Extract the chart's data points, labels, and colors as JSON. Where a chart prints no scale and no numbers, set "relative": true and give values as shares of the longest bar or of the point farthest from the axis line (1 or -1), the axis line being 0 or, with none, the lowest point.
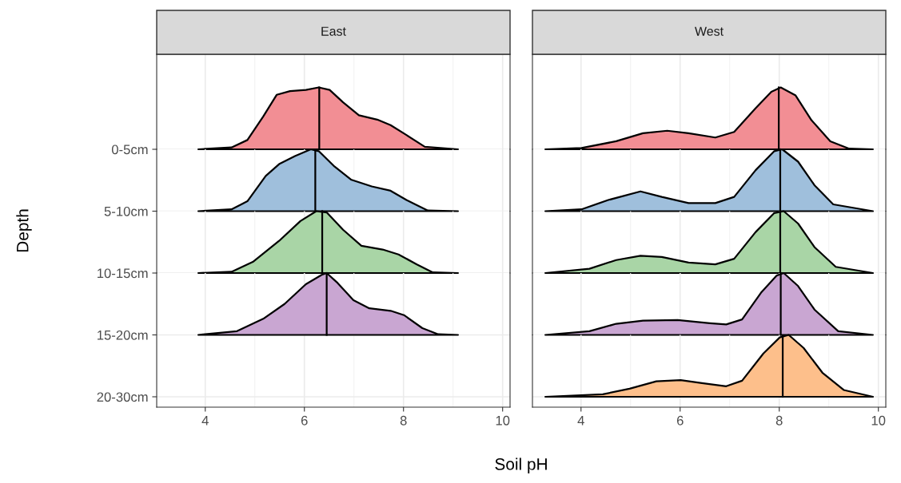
{
  "chart_data": [
    {
      "type": "area",
      "title": "East",
      "ylabel": "Depth",
      "relative": true,
      "grid": true,
      "tick_labels": "y",
      "y_categories": [
        "0-5cm"
      ],
      "xlim": [
        3.02,
        10.15
      ],
      "xticks": [
        4,
        6,
        8,
        10
      ],
      "series": [
        {
          "color": "#f28e94",
          "x": [
            3.86,
            4.53,
            4.85,
            5.17,
            5.44,
            5.71,
            6.03,
            6.29,
            6.51,
            6.78,
            7.1,
            7.47,
            7.74,
            8.06,
            8.43,
            9.1
          ],
          "values": [
            0,
            0.03,
            0.15,
            0.53,
            0.88,
            0.94,
            0.96,
            1,
            0.96,
            0.76,
            0.55,
            0.48,
            0.39,
            0.23,
            0.04,
            0
          ]
        },
        {
          "type": "line",
          "color": "#000000",
          "x": [
            6.3,
            6.3
          ],
          "values": [
            0,
            1
          ]
        }
      ]
    },
    {
      "type": "area",
      "relative": true,
      "grid": true,
      "tick_labels": "y",
      "y_categories": [
        "5-10cm"
      ],
      "xlim": [
        3.02,
        10.15
      ],
      "xticks": [
        4,
        6,
        8,
        10
      ],
      "series": [
        {
          "color": "#9fbfdc",
          "x": [
            3.86,
            4.53,
            4.85,
            5.22,
            5.49,
            5.81,
            6.13,
            6.29,
            6.61,
            6.94,
            7.36,
            7.74,
            8.06,
            8.49,
            9.1
          ],
          "values": [
            0,
            0.03,
            0.16,
            0.57,
            0.76,
            0.89,
            1,
            0.97,
            0.72,
            0.51,
            0.4,
            0.33,
            0.18,
            0.01,
            0
          ]
        },
        {
          "type": "line",
          "color": "#000000",
          "x": [
            6.22,
            6.22
          ],
          "values": [
            0,
            0.99
          ]
        }
      ]
    },
    {
      "type": "area",
      "relative": true,
      "grid": true,
      "tick_labels": "y",
      "y_categories": [
        "10-15cm"
      ],
      "xlim": [
        3.02,
        10.15
      ],
      "xticks": [
        4,
        6,
        8,
        10
      ],
      "series": [
        {
          "color": "#a9d5a6",
          "x": [
            3.86,
            4.53,
            4.96,
            5.49,
            5.92,
            6.24,
            6.45,
            6.78,
            7.15,
            7.58,
            7.9,
            8.27,
            8.59,
            9.1
          ],
          "values": [
            0,
            0.02,
            0.18,
            0.52,
            0.84,
            1,
            0.98,
            0.7,
            0.44,
            0.38,
            0.3,
            0.14,
            0.01,
            0
          ]
        },
        {
          "type": "line",
          "color": "#000000",
          "x": [
            6.36,
            6.36
          ],
          "values": [
            0,
            1
          ]
        }
      ]
    },
    {
      "type": "area",
      "xlabel": "Soil pH",
      "relative": true,
      "grid": true,
      "y_categories": [
        "15-20cm",
        "20-30cm"
      ],
      "xlim": [
        3.02,
        10.15
      ],
      "xticks": [
        4,
        6,
        8,
        10
      ],
      "series": [
        {
          "color": "#c9a6d2",
          "x": [
            3.86,
            4.64,
            5.17,
            5.6,
            6.03,
            6.35,
            6.45,
            6.67,
            6.99,
            7.31,
            7.74,
            8.01,
            8.38,
            8.7,
            9.1
          ],
          "values": [
            0,
            0.06,
            0.26,
            0.5,
            0.82,
            0.97,
            1,
            0.84,
            0.56,
            0.43,
            0.39,
            0.32,
            0.11,
            0.01,
            0
          ]
        },
        {
          "type": "line",
          "color": "#000000",
          "x": [
            6.45,
            6.45
          ],
          "values": [
            0,
            1
          ]
        }
      ]
    },
    {
      "type": "area",
      "title": "West",
      "relative": true,
      "grid": true,
      "tick_labels": false,
      "xlim": [
        3.02,
        10.15
      ],
      "xticks": [
        4,
        6,
        8,
        10
      ],
      "series": [
        {
          "color": "#f28e94",
          "x": [
            3.28,
            4.01,
            4.71,
            5.25,
            5.74,
            6.17,
            6.71,
            7.09,
            7.52,
            7.84,
            8.03,
            8.33,
            8.65,
            9.03,
            9.41,
            9.89
          ],
          "values": [
            0,
            0.02,
            0.13,
            0.26,
            0.3,
            0.26,
            0.19,
            0.28,
            0.66,
            0.93,
            1,
            0.87,
            0.47,
            0.13,
            0.01,
            0
          ]
        },
        {
          "type": "line",
          "color": "#000000",
          "x": [
            7.99,
            7.99
          ],
          "values": [
            0,
            1
          ]
        }
      ]
    },
    {
      "type": "area",
      "relative": true,
      "grid": true,
      "tick_labels": false,
      "xlim": [
        3.02,
        10.15
      ],
      "xticks": [
        4,
        6,
        8,
        10
      ],
      "series": [
        {
          "color": "#9fbfdc",
          "x": [
            3.28,
            4.01,
            4.55,
            5.2,
            5.63,
            6.17,
            6.71,
            7.09,
            7.52,
            7.9,
            8.06,
            8.38,
            8.71,
            9.09,
            9.89
          ],
          "values": [
            0,
            0.03,
            0.18,
            0.32,
            0.23,
            0.13,
            0.13,
            0.23,
            0.66,
            0.97,
            1,
            0.8,
            0.42,
            0.11,
            0
          ]
        },
        {
          "type": "line",
          "color": "#000000",
          "x": [
            8.02,
            8.02
          ],
          "values": [
            0,
            1
          ]
        }
      ]
    },
    {
      "type": "area",
      "relative": true,
      "grid": true,
      "tick_labels": false,
      "xlim": [
        3.02,
        10.15
      ],
      "xticks": [
        4,
        6,
        8,
        10
      ],
      "series": [
        {
          "color": "#a9d5a6",
          "x": [
            3.28,
            4.17,
            4.71,
            5.2,
            5.63,
            6.17,
            6.71,
            7.09,
            7.52,
            7.9,
            8.09,
            8.38,
            8.71,
            9.14,
            9.89
          ],
          "values": [
            0,
            0.07,
            0.21,
            0.28,
            0.26,
            0.17,
            0.14,
            0.23,
            0.66,
            0.97,
            1,
            0.8,
            0.42,
            0.1,
            0
          ]
        },
        {
          "type": "line",
          "color": "#000000",
          "x": [
            8.02,
            8.02
          ],
          "values": [
            0,
            1
          ]
        }
      ]
    },
    {
      "type": "area",
      "relative": true,
      "grid": true,
      "tick_labels": false,
      "xlim": [
        3.02,
        10.15
      ],
      "xticks": [
        4,
        6,
        8,
        10
      ],
      "series": [
        {
          "color": "#c9a6d2",
          "x": [
            3.28,
            4.17,
            4.71,
            5.25,
            5.95,
            6.6,
            6.93,
            7.25,
            7.63,
            7.95,
            8.09,
            8.38,
            8.71,
            9.19,
            9.89
          ],
          "values": [
            0,
            0.06,
            0.18,
            0.23,
            0.24,
            0.19,
            0.17,
            0.25,
            0.68,
            0.96,
            1,
            0.79,
            0.41,
            0.06,
            0
          ]
        },
        {
          "type": "line",
          "color": "#000000",
          "x": [
            8.03,
            8.03
          ],
          "values": [
            0,
            1
          ]
        }
      ]
    },
    {
      "type": "area",
      "relative": true,
      "grid": true,
      "tick_labels": "x",
      "xlim": [
        3.02,
        10.15
      ],
      "xticks": [
        4,
        6,
        8,
        10
      ],
      "series": [
        {
          "color": "#fdbf8b",
          "x": [
            3.28,
            4.44,
            4.98,
            5.52,
            6.01,
            6.44,
            6.93,
            7.25,
            7.68,
            8.01,
            8.19,
            8.49,
            8.87,
            9.3,
            9.89
          ],
          "values": [
            0,
            0.04,
            0.13,
            0.25,
            0.27,
            0.22,
            0.17,
            0.26,
            0.7,
            0.96,
            1,
            0.79,
            0.39,
            0.11,
            0
          ]
        },
        {
          "type": "line",
          "color": "#000000",
          "x": [
            8.07,
            8.07
          ],
          "values": [
            0,
            0.98
          ]
        }
      ]
    }
  ]
}
